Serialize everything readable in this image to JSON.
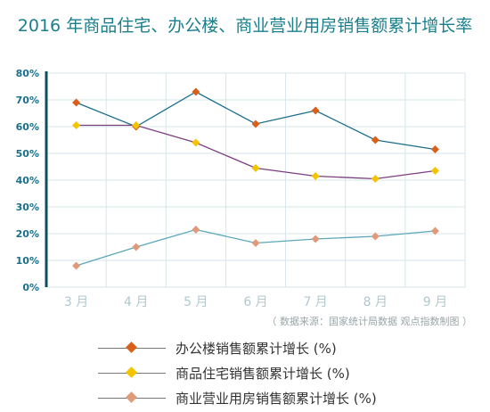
{
  "title": "2016 年商品住宅、办公楼、商业营业用房销售额累计增长率",
  "source": "（ 数据来源：国家统计局数据 观点指数制图 ）",
  "chart_data": {
    "type": "line",
    "categories": [
      "3 月",
      "4 月",
      "5 月",
      "6 月",
      "7 月",
      "8 月",
      "9 月"
    ],
    "ylim": [
      0,
      80
    ],
    "y_ticks": [
      "0%",
      "10%",
      "20%",
      "30%",
      "40%",
      "50%",
      "60%",
      "70%",
      "80%"
    ],
    "grid": true,
    "legend_position": "bottom",
    "series": [
      {
        "name": "办公楼销售额累计增长 (%)",
        "color": "#1a6f8a",
        "marker_color": "#d95f1a",
        "values": [
          69,
          60,
          73,
          61,
          66,
          55,
          51.5
        ]
      },
      {
        "name": "商品住宅销售额累计增长 (%)",
        "color": "#7b3f7f",
        "marker_color": "#f5c400",
        "values": [
          60.5,
          60.5,
          54,
          44.5,
          41.5,
          40.5,
          43.5
        ]
      },
      {
        "name": "商业营业用房销售额累计增长 (%)",
        "color": "#5aa8b8",
        "marker_color": "#e09a7a",
        "values": [
          8,
          15,
          21.5,
          16.5,
          18,
          19,
          21
        ]
      }
    ]
  }
}
